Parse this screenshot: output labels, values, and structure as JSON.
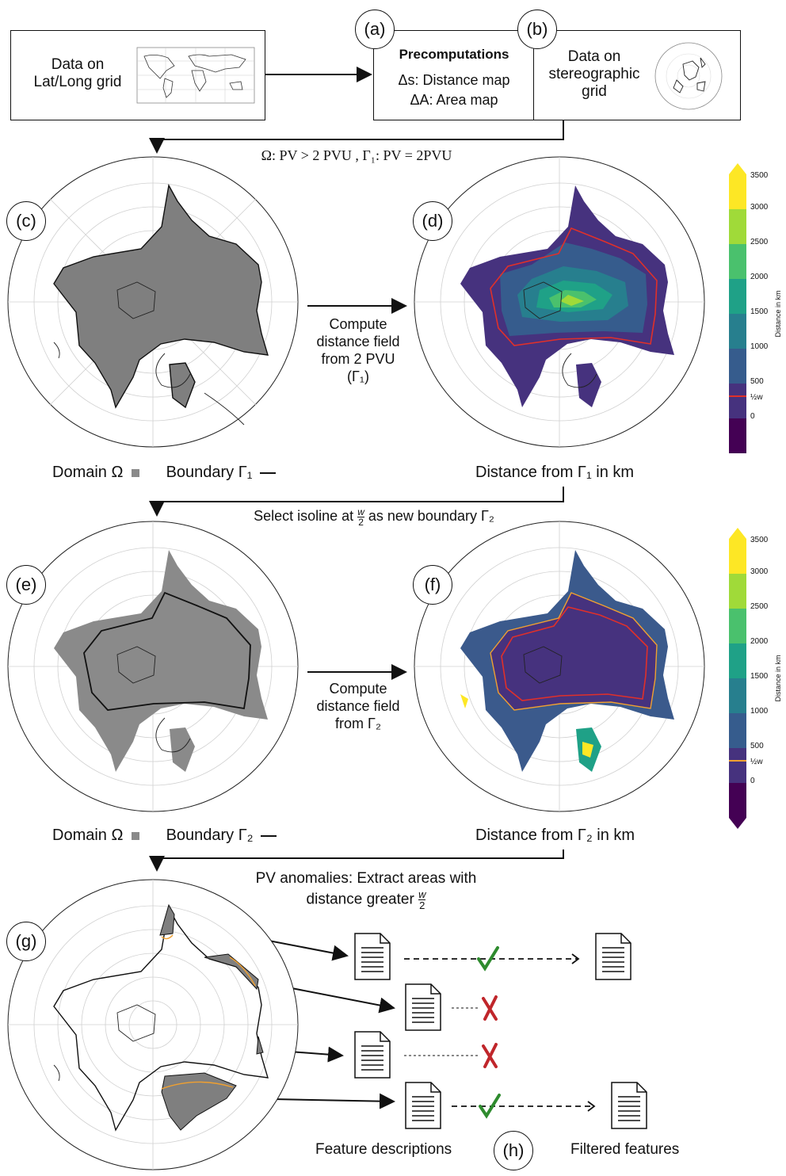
{
  "boxes": {
    "input_label": "Data on\nLat/Long grid",
    "precomp_title": "Precomputations",
    "precomp_line1": "Δs: Distance map",
    "precomp_line2": "ΔA: Area map",
    "stereo_label": "Data on\nstereographic\ngrid"
  },
  "panel_labels": {
    "a": "(a)",
    "b": "(b)",
    "c": "(c)",
    "d": "(d)",
    "e": "(e)",
    "f": "(f)",
    "g": "(g)",
    "h": "(h)"
  },
  "steps": {
    "step1": "Ω: PV > 2 PVU , Γ₁: PV = 2PVU",
    "step2_pre": "Select isoline at",
    "step2_post": "as new boundary Γ₂",
    "step3_line1": "PV anomalies: Extract areas with",
    "step3_line2": "distance greater",
    "frac_num": "w",
    "frac_den": "2"
  },
  "arrows_text": {
    "compute1": "Compute\ndistance field\nfrom 2 PVU (Γ₁)",
    "compute2": "Compute\ndistance field\nfrom Γ₂"
  },
  "captions": {
    "c_domain": "Domain Ω",
    "c_boundary": "Boundary Γ₁",
    "d_distance": "Distance from Γ₁ in km",
    "e_domain": "Domain Ω",
    "e_boundary": "Boundary Γ₂",
    "f_distance": "Distance from Γ₂ in km"
  },
  "colorbar": {
    "title": "Distance in km",
    "ticks": [
      "3500",
      "3000",
      "2500",
      "2000",
      "1500",
      "1000",
      "500",
      "0"
    ],
    "half_w": "½w",
    "colors": [
      "#fde725",
      "#a0da39",
      "#4ac16d",
      "#1fa187",
      "#277f8e",
      "#365c8d",
      "#46327e",
      "#440154"
    ],
    "line_d": "#e0302a",
    "line_f": "#f0a030"
  },
  "features": {
    "descriptions": "Feature descriptions",
    "filtered": "Filtered features",
    "check_color": "#2e8b2e",
    "cross_color": "#c0262b"
  }
}
